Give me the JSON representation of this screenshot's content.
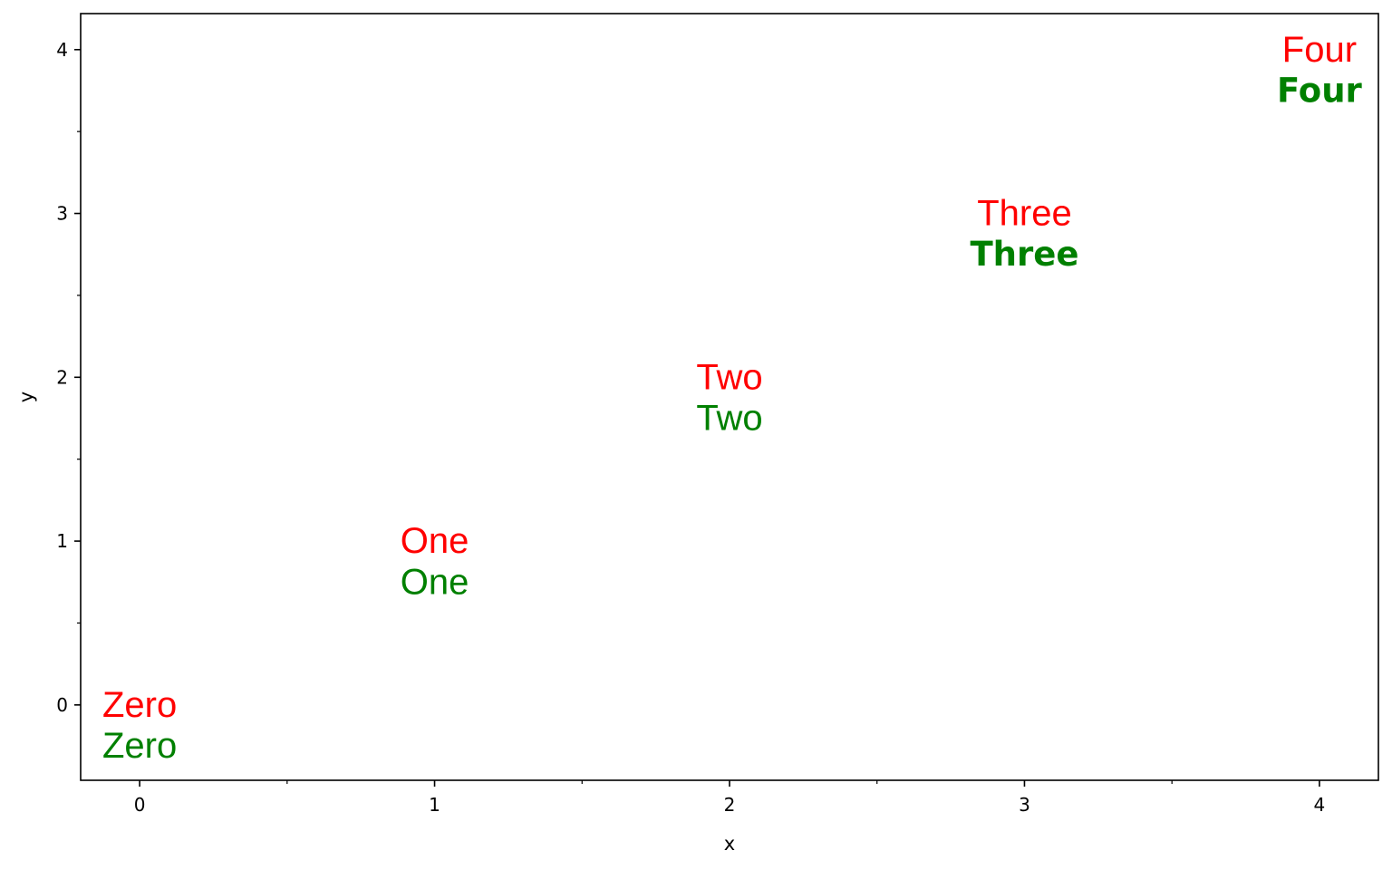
{
  "chart_data": {
    "type": "scatter",
    "title": "",
    "xlabel": "x",
    "ylabel": "y",
    "xlim": [
      -0.2,
      4.2
    ],
    "ylim": [
      -0.46,
      4.22
    ],
    "xticks": [
      "0",
      "1",
      "2",
      "3",
      "4"
    ],
    "yticks": [
      "0",
      "1",
      "2",
      "3",
      "4"
    ],
    "grid": false,
    "colors": {
      "red": "#ff0000",
      "green": "#008000"
    },
    "annotations": [
      {
        "text": "Zero",
        "x": 0,
        "y": 0,
        "color": "#ff0000",
        "weight": 500
      },
      {
        "text": "Zero",
        "x": 0,
        "y": -0.25,
        "color": "#008000",
        "weight": 300
      },
      {
        "text": "One",
        "x": 1,
        "y": 1,
        "color": "#ff0000",
        "weight": 500
      },
      {
        "text": "One",
        "x": 1,
        "y": 0.75,
        "color": "#008000",
        "weight": 300
      },
      {
        "text": "Two",
        "x": 2,
        "y": 2,
        "color": "#ff0000",
        "weight": 400
      },
      {
        "text": "Two",
        "x": 2,
        "y": 1.75,
        "color": "#008000",
        "weight": 400
      },
      {
        "text": "Three",
        "x": 3,
        "y": 3,
        "color": "#ff0000",
        "weight": 400
      },
      {
        "text": "Three",
        "x": 3,
        "y": 2.75,
        "color": "#008000",
        "weight": 700
      },
      {
        "text": "Four",
        "x": 4,
        "y": 4,
        "color": "#ff0000",
        "weight": 400
      },
      {
        "text": "Four",
        "x": 4,
        "y": 3.75,
        "color": "#008000",
        "weight": 700
      }
    ]
  }
}
